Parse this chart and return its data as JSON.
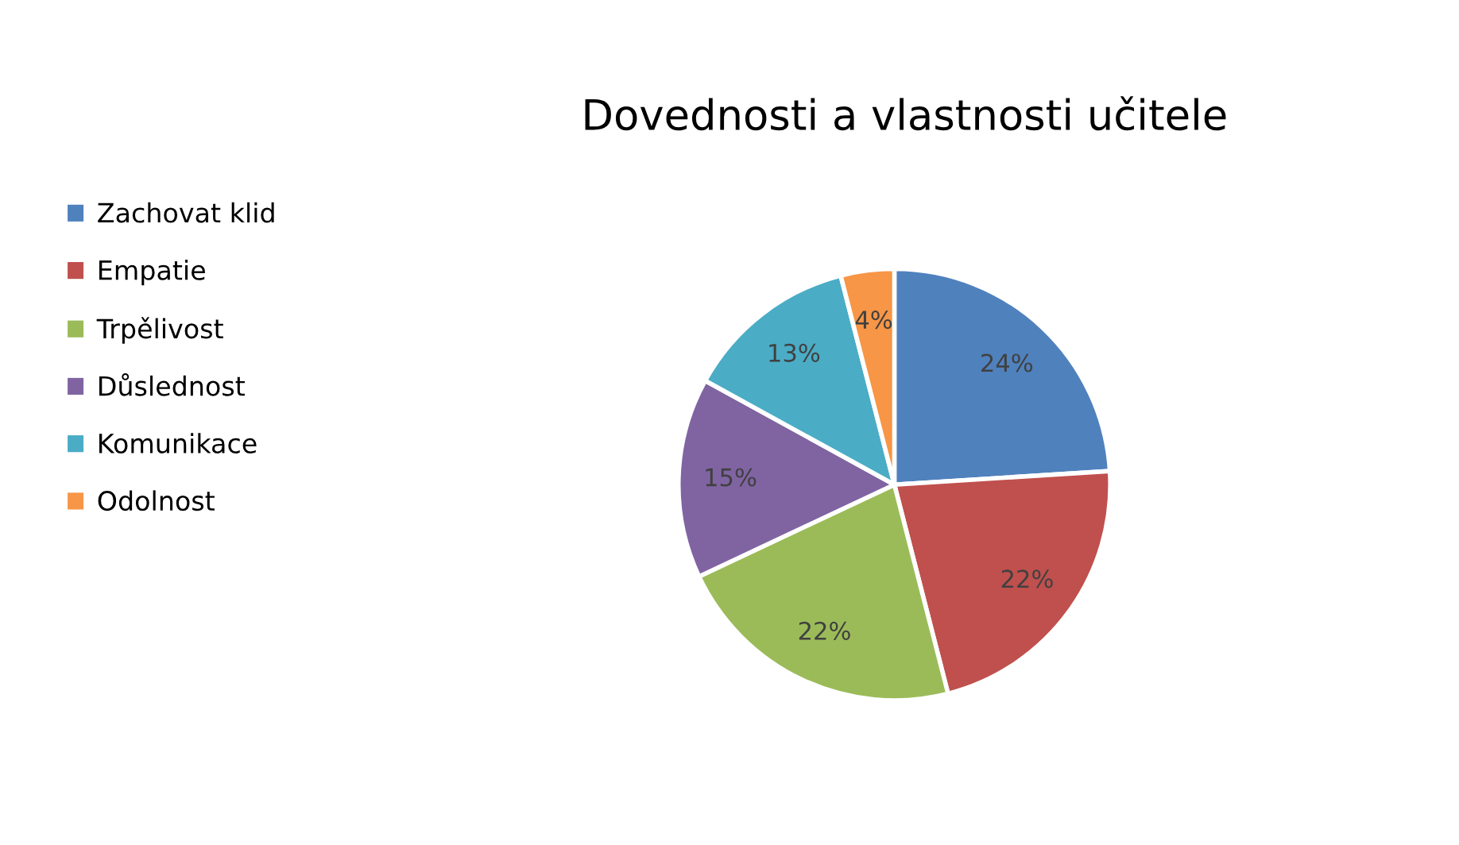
{
  "chart_data": {
    "type": "pie",
    "title": "Dovednosti a vlastnosti učitele",
    "categories": [
      "Zachovat klid",
      "Empatie",
      "Trpělivost",
      "Důslednost",
      "Komunikace",
      "Odolnost"
    ],
    "values": [
      24,
      22,
      22,
      15,
      13,
      4
    ],
    "colors": [
      "#4f81bd",
      "#c0504d",
      "#9bbb59",
      "#8064a2",
      "#4bacc6",
      "#f79646"
    ],
    "value_labels": [
      "24%",
      "22%",
      "22%",
      "15%",
      "13%",
      "4%"
    ],
    "legend": "left"
  }
}
